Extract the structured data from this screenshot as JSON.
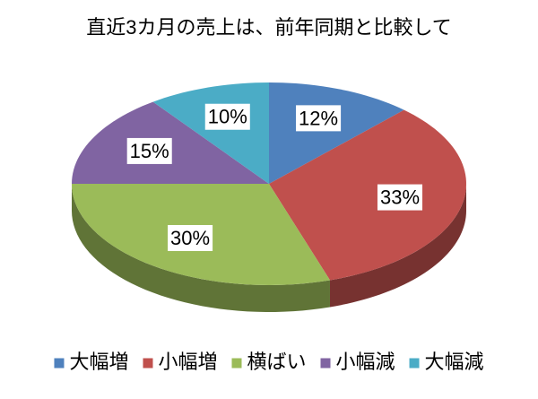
{
  "chart_data": {
    "type": "pie3d",
    "title": "直近3カ月の売上は、前年同期と比較して",
    "categories": [
      "大幅増",
      "小幅増",
      "横ばい",
      "小幅減",
      "大幅減"
    ],
    "values": [
      12,
      33,
      30,
      15,
      10
    ],
    "value_labels": [
      "12%",
      "33%",
      "30%",
      "15%",
      "10%"
    ],
    "colors": [
      "#4f81bd",
      "#c0504d",
      "#9bbb59",
      "#8064a2",
      "#4bacc6"
    ],
    "legend": "bottom"
  }
}
